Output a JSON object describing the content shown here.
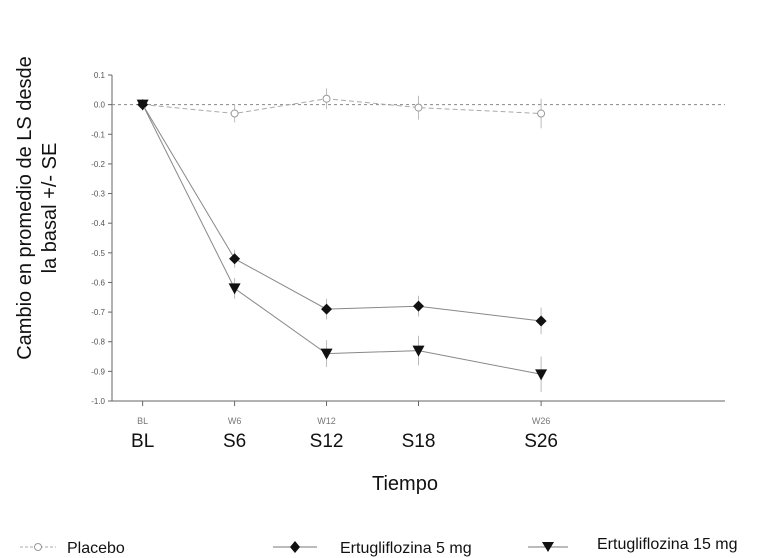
{
  "chart_data": {
    "type": "line",
    "ylabel_line1": "Cambio en promedio de LS desde",
    "ylabel_line2": "la basal +/- SE",
    "xlabel": "Tiempo",
    "ylim": [
      -1.0,
      0.1
    ],
    "yticks": [
      "0.1",
      "0.0",
      "-0.1",
      "-0.2",
      "-0.3",
      "-0.4",
      "-0.5",
      "-0.6",
      "-0.7",
      "-0.8",
      "-0.9",
      "-1.0"
    ],
    "categories": [
      "BL",
      "S6",
      "S12",
      "S18",
      "S26"
    ],
    "faint_categories": [
      "BL",
      "W6",
      "W12",
      "",
      "W26"
    ],
    "x": [
      0,
      6,
      12,
      18,
      26
    ],
    "xlim": [
      -2,
      38
    ],
    "series": [
      {
        "name": "Placebo",
        "marker": "open-circle",
        "color": "#aaaaaa",
        "values": [
          0.0,
          -0.03,
          0.02,
          -0.01,
          -0.03
        ],
        "se": [
          0.0,
          0.03,
          0.035,
          0.04,
          0.05
        ]
      },
      {
        "name": "Ertugliflozina 5 mg",
        "marker": "filled-diamond",
        "color": "#111111",
        "values": [
          0.0,
          -0.52,
          -0.69,
          -0.68,
          -0.73
        ],
        "se": [
          0.0,
          0.03,
          0.035,
          0.035,
          0.045
        ]
      },
      {
        "name": "Ertugliflozina 15 mg",
        "marker": "filled-triangle-down",
        "color": "#111111",
        "values": [
          0.0,
          -0.62,
          -0.84,
          -0.83,
          -0.91
        ],
        "se": [
          0.0,
          0.035,
          0.045,
          0.05,
          0.06
        ]
      }
    ],
    "reference_line": 0.0,
    "grid": false,
    "legend_placement": "bottom"
  }
}
